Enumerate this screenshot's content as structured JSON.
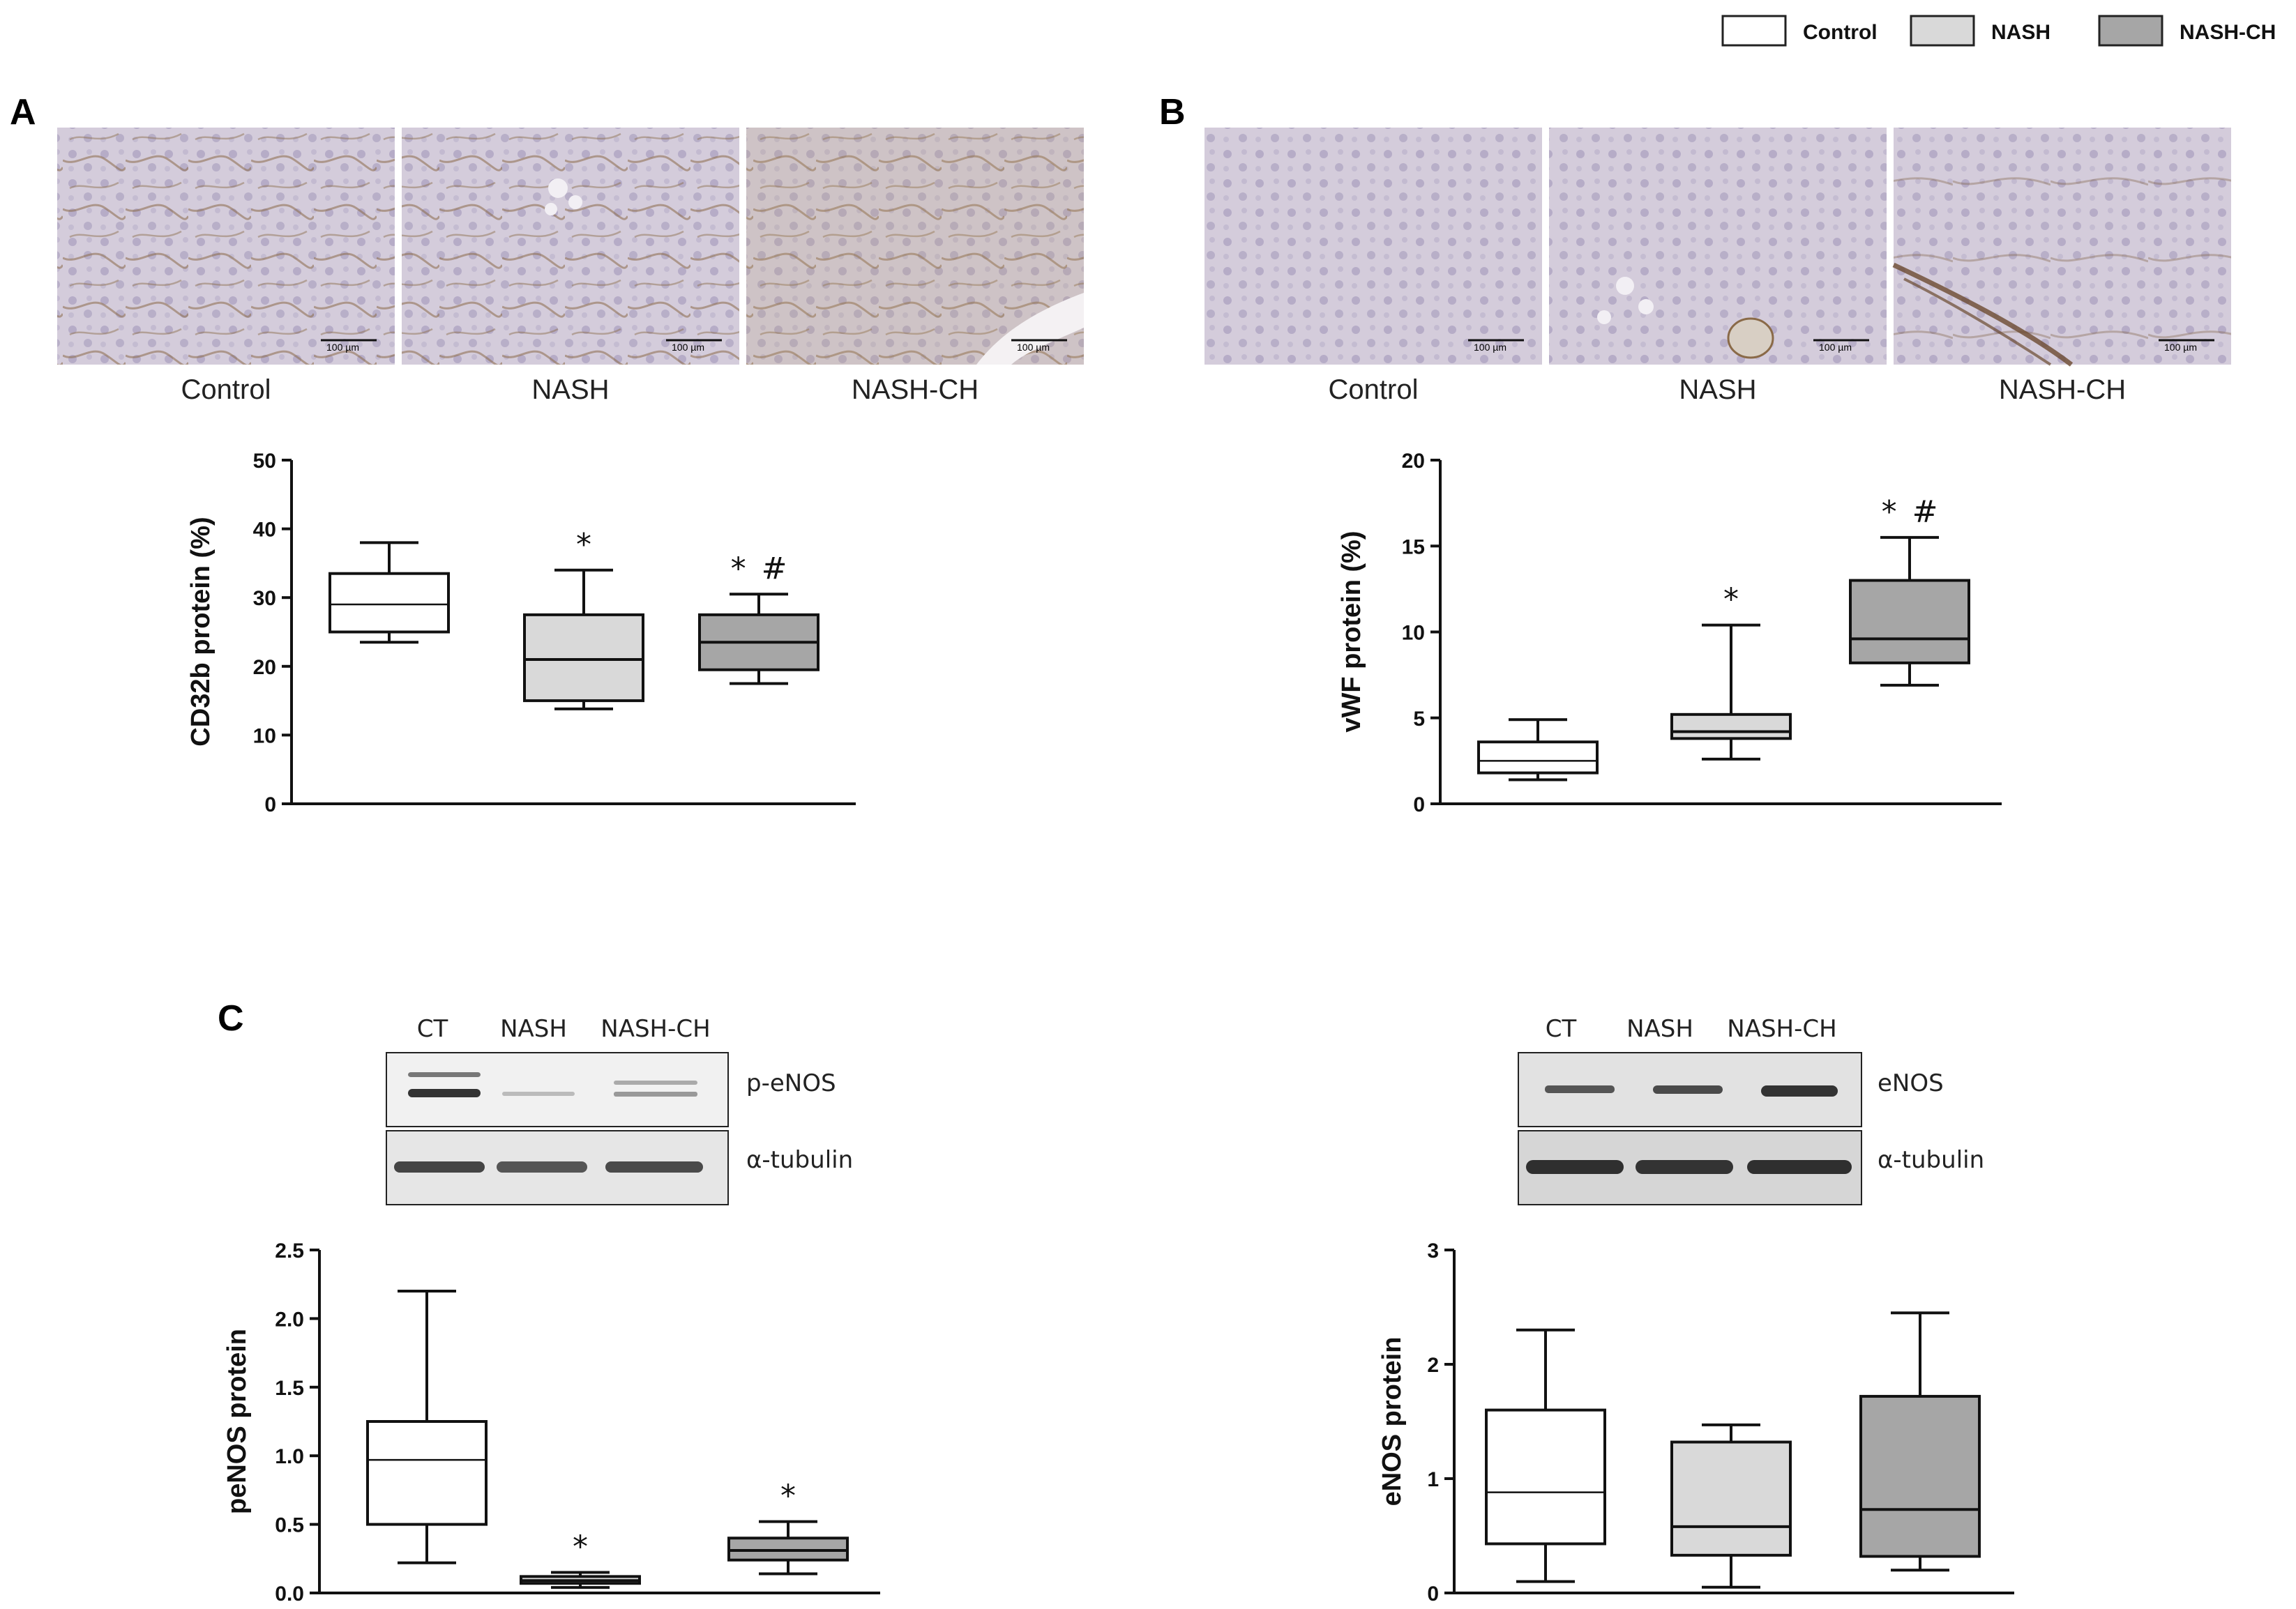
{
  "legend": {
    "items": [
      {
        "label": "Control",
        "color": "#ffffff"
      },
      {
        "label": "NASH",
        "color": "#d9d9d9"
      },
      {
        "label": "NASH-CH",
        "color": "#a6a6a6"
      }
    ]
  },
  "panels": {
    "A": {
      "letter": "A",
      "image_captions": [
        "Control",
        "NASH",
        "NASH-CH"
      ],
      "scale_bar": "100 µm"
    },
    "B": {
      "letter": "B",
      "image_captions": [
        "Control",
        "NASH",
        "NASH-CH"
      ],
      "scale_bar": "100 µm"
    },
    "C": {
      "letter": "C",
      "blot_left": {
        "lanes": [
          "CT",
          "NASH",
          "NASH-CH"
        ],
        "rows": [
          "p-eNOS",
          "α-tubulin"
        ]
      },
      "blot_right": {
        "lanes": [
          "CT",
          "NASH",
          "NASH-CH"
        ],
        "rows": [
          "eNOS",
          "α-tubulin"
        ]
      }
    }
  },
  "colors": {
    "control": "#ffffff",
    "nash": "#d9d9d9",
    "nash_ch": "#a6a6a6",
    "tissue": "#cfc6d6",
    "stain": "#8a6a48"
  },
  "chart_data": [
    {
      "type": "box",
      "panel": "A",
      "ylabel": "CD32b protein (%)",
      "ylim": [
        0,
        50
      ],
      "yticks": [
        0,
        10,
        20,
        30,
        40,
        50
      ],
      "groups": [
        "Control",
        "NASH",
        "NASH-CH"
      ],
      "boxes": [
        {
          "min": 23.5,
          "q1": 25,
          "median": 29,
          "q3": 33.5,
          "max": 38,
          "sig": ""
        },
        {
          "min": 13.8,
          "q1": 15,
          "median": 21,
          "q3": 27.5,
          "max": 34,
          "sig": "*"
        },
        {
          "min": 17.5,
          "q1": 19.5,
          "median": 23.5,
          "q3": 27.5,
          "max": 30.5,
          "sig": "* #"
        }
      ]
    },
    {
      "type": "box",
      "panel": "B",
      "ylabel": "vWF protein (%)",
      "ylim": [
        0,
        20
      ],
      "yticks": [
        0,
        5,
        10,
        15,
        20
      ],
      "groups": [
        "Control",
        "NASH",
        "NASH-CH"
      ],
      "boxes": [
        {
          "min": 1.4,
          "q1": 1.8,
          "median": 2.5,
          "q3": 3.6,
          "max": 4.9,
          "sig": ""
        },
        {
          "min": 2.6,
          "q1": 3.8,
          "median": 4.2,
          "q3": 5.2,
          "max": 10.4,
          "sig": "*"
        },
        {
          "min": 6.9,
          "q1": 8.2,
          "median": 9.6,
          "q3": 13.0,
          "max": 15.5,
          "sig": "* #"
        }
      ]
    },
    {
      "type": "box",
      "panel": "C-left",
      "ylabel": "peNOS protein",
      "ylim": [
        0,
        2.5
      ],
      "yticks": [
        "0.0",
        "0.5",
        "1.0",
        "1.5",
        "2.0",
        "2.5"
      ],
      "groups": [
        "CT",
        "NASH",
        "NASH-CH"
      ],
      "boxes": [
        {
          "min": 0.22,
          "q1": 0.5,
          "median": 0.97,
          "q3": 1.25,
          "max": 2.2,
          "sig": ""
        },
        {
          "min": 0.04,
          "q1": 0.07,
          "median": 0.09,
          "q3": 0.12,
          "max": 0.15,
          "sig": "*"
        },
        {
          "min": 0.14,
          "q1": 0.24,
          "median": 0.31,
          "q3": 0.4,
          "max": 0.52,
          "sig": "*"
        }
      ]
    },
    {
      "type": "box",
      "panel": "C-right",
      "ylabel": "eNOS protein",
      "ylim": [
        0,
        3
      ],
      "yticks": [
        0,
        1,
        2,
        3
      ],
      "groups": [
        "CT",
        "NASH",
        "NASH-CH"
      ],
      "boxes": [
        {
          "min": 0.1,
          "q1": 0.43,
          "median": 0.88,
          "q3": 1.6,
          "max": 2.3,
          "sig": ""
        },
        {
          "min": 0.05,
          "q1": 0.33,
          "median": 0.58,
          "q3": 1.32,
          "max": 1.47,
          "sig": ""
        },
        {
          "min": 0.2,
          "q1": 0.32,
          "median": 0.73,
          "q3": 1.72,
          "max": 2.45,
          "sig": ""
        }
      ]
    }
  ]
}
